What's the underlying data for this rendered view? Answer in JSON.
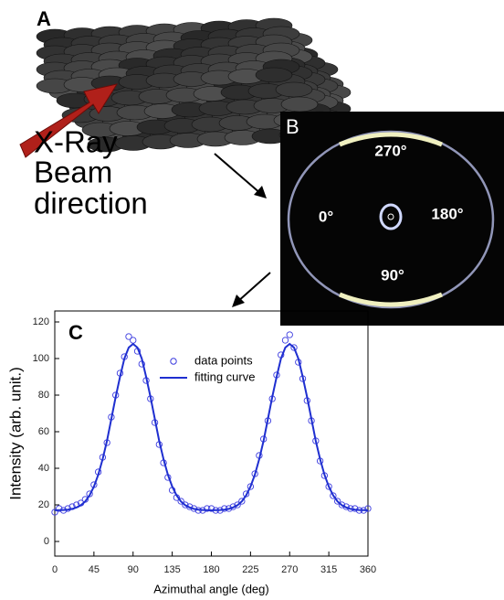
{
  "panels": {
    "a": {
      "label": "A",
      "annotation": [
        "X-Ray",
        "Beam",
        "direction"
      ]
    },
    "b": {
      "label": "B",
      "angles": [
        "270°",
        "0°",
        "180°",
        "90°"
      ]
    }
  },
  "chart_data": {
    "type": "scatter",
    "panel_label": "C",
    "x_label": "Azimuthal angle (deg)",
    "y_label": "Intensity (arb. unit.)",
    "xlim": [
      0,
      360
    ],
    "ylim": [
      -8,
      126
    ],
    "xticks": [
      0,
      45,
      90,
      135,
      180,
      225,
      270,
      315,
      360
    ],
    "yticks": [
      0,
      20,
      40,
      60,
      80,
      100,
      120
    ],
    "legend": "upper-center",
    "x": [
      0,
      5,
      10,
      15,
      20,
      25,
      30,
      35,
      40,
      45,
      50,
      55,
      60,
      65,
      70,
      75,
      80,
      85,
      90,
      95,
      100,
      105,
      110,
      115,
      120,
      125,
      130,
      135,
      140,
      145,
      150,
      155,
      160,
      165,
      170,
      175,
      180,
      185,
      190,
      195,
      200,
      205,
      210,
      215,
      220,
      225,
      230,
      235,
      240,
      245,
      250,
      255,
      260,
      265,
      270,
      275,
      280,
      285,
      290,
      295,
      300,
      305,
      310,
      315,
      320,
      325,
      330,
      335,
      340,
      345,
      350,
      355,
      360
    ],
    "series": [
      {
        "name": "data points",
        "type": "scatter",
        "color": "#3a3adf",
        "values": [
          16,
          18,
          17,
          18,
          19,
          20,
          21,
          23,
          26,
          31,
          38,
          46,
          54,
          68,
          80,
          92,
          101,
          112,
          110,
          104,
          97,
          88,
          78,
          65,
          53,
          43,
          35,
          28,
          24,
          22,
          20,
          19,
          18,
          17,
          17,
          18,
          18,
          17,
          17,
          18,
          18,
          19,
          20,
          22,
          26,
          30,
          37,
          47,
          56,
          66,
          78,
          91,
          102,
          110,
          113,
          106,
          98,
          89,
          77,
          66,
          55,
          44,
          36,
          30,
          25,
          22,
          20,
          19,
          18,
          18,
          17,
          17,
          18
        ]
      },
      {
        "name": "fitting curve",
        "type": "line",
        "color": "#1f2fd0",
        "values": [
          17,
          17.1,
          17.2,
          17.4,
          17.8,
          18.6,
          19.8,
          21.9,
          25.2,
          30,
          36.5,
          45,
          55,
          67,
          79,
          90,
          100,
          106,
          108,
          106,
          100,
          90,
          79,
          67,
          55,
          45,
          36.5,
          30,
          25.2,
          21.9,
          19.8,
          18.6,
          17.8,
          17.4,
          17.2,
          17.1,
          17,
          17.1,
          17.2,
          17.4,
          17.8,
          18.6,
          19.8,
          21.9,
          25.2,
          30,
          36.5,
          45,
          55,
          67,
          79,
          90,
          100,
          106,
          108,
          106,
          100,
          90,
          79,
          67,
          55,
          45,
          36.5,
          30,
          25.2,
          21.9,
          19.8,
          18.6,
          17.8,
          17.4,
          17.2,
          17.1,
          17
        ]
      }
    ]
  }
}
